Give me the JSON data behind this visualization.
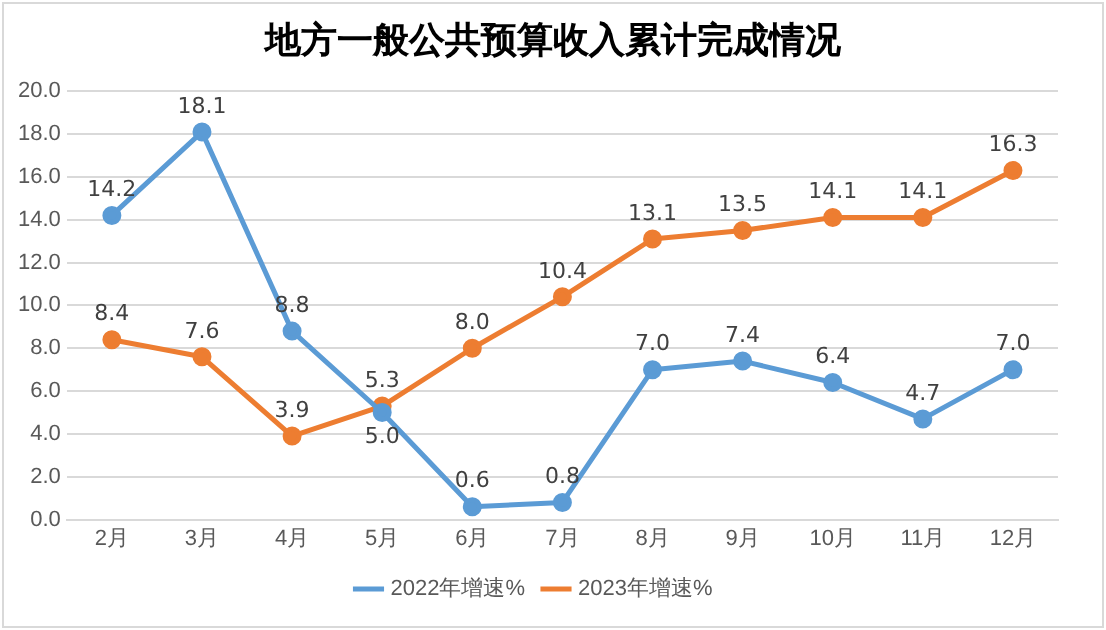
{
  "chart_data": {
    "type": "line",
    "title": "地方一般公共预算收入累计完成情况",
    "categories": [
      "2月",
      "3月",
      "4月",
      "5月",
      "6月",
      "7月",
      "8月",
      "9月",
      "10月",
      "11月",
      "12月"
    ],
    "series": [
      {
        "name": "2022年增速%",
        "color": "#5b9bd5",
        "values": [
          14.2,
          18.1,
          8.8,
          5.0,
          0.6,
          0.8,
          7.0,
          7.4,
          6.4,
          4.7,
          7.0
        ],
        "value_labels": [
          "14.2",
          "18.1",
          "8.8",
          "5.0",
          "0.6",
          "0.8",
          "7.0",
          "7.4",
          "6.4",
          "4.7",
          "7.0"
        ]
      },
      {
        "name": "2023年增速%",
        "color": "#ed7d31",
        "values": [
          8.4,
          7.6,
          3.9,
          5.3,
          8.0,
          10.4,
          13.1,
          13.5,
          14.1,
          14.1,
          16.3
        ],
        "value_labels": [
          "8.4",
          "7.6",
          "3.9",
          "5.3",
          "8.0",
          "10.4",
          "13.1",
          "13.5",
          "14.1",
          "14.1",
          "16.3"
        ]
      }
    ],
    "ylim": [
      0,
      20
    ],
    "yticks": [
      {
        "value": 0,
        "label": "0.0"
      },
      {
        "value": 2,
        "label": "2.0"
      },
      {
        "value": 4,
        "label": "4.0"
      },
      {
        "value": 6,
        "label": "6.0"
      },
      {
        "value": 8,
        "label": "8.0"
      },
      {
        "value": 10,
        "label": "10.0"
      },
      {
        "value": 12,
        "label": "12.0"
      },
      {
        "value": 14,
        "label": "14.0"
      },
      {
        "value": 16,
        "label": "16.0"
      },
      {
        "value": 18,
        "label": "18.0"
      },
      {
        "value": 20,
        "label": "20.0"
      }
    ],
    "grid": "y",
    "legend": "bottom",
    "marker": "circle",
    "line_style": "solid"
  }
}
